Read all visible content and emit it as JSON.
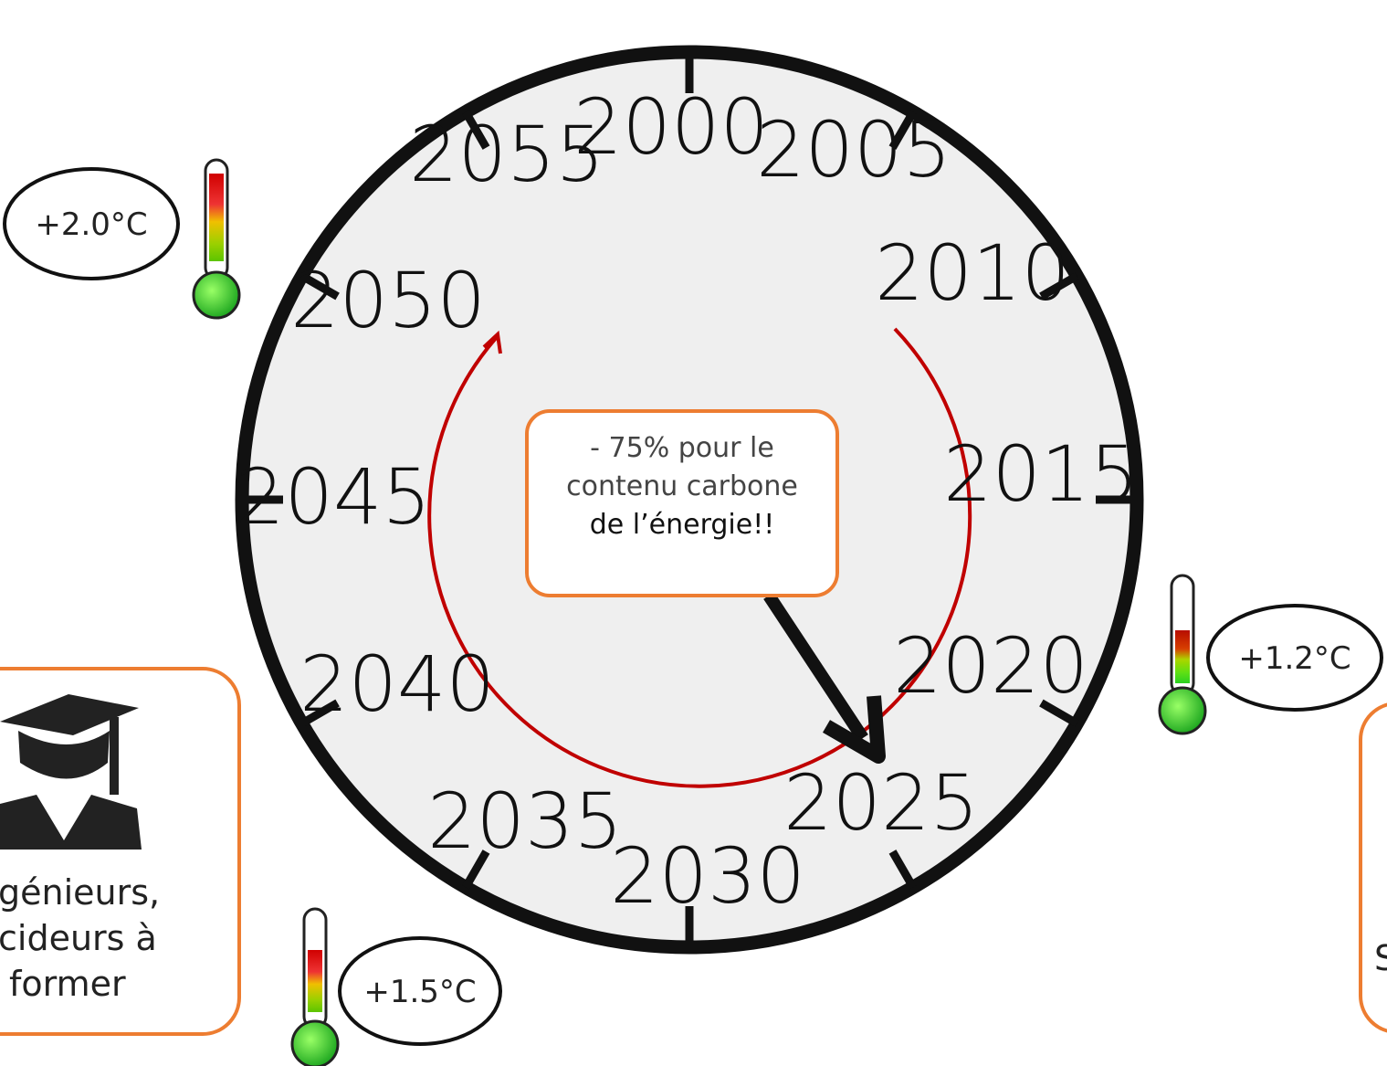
{
  "clock": {
    "years": [
      "2000",
      "2005",
      "2010",
      "2015",
      "2020",
      "2025",
      "2030",
      "2035",
      "2040",
      "2045",
      "2050",
      "2055"
    ]
  },
  "center_note": [
    "- 75% pour le",
    "contenu carbone",
    "de l’énergie!!"
  ],
  "temperatures": [
    "+2.0°C",
    "+1.2°C",
    "+1.5°C"
  ],
  "left_box": [
    "génieurs,",
    "cideurs à",
    "former"
  ],
  "right_box": [
    "S"
  ]
}
